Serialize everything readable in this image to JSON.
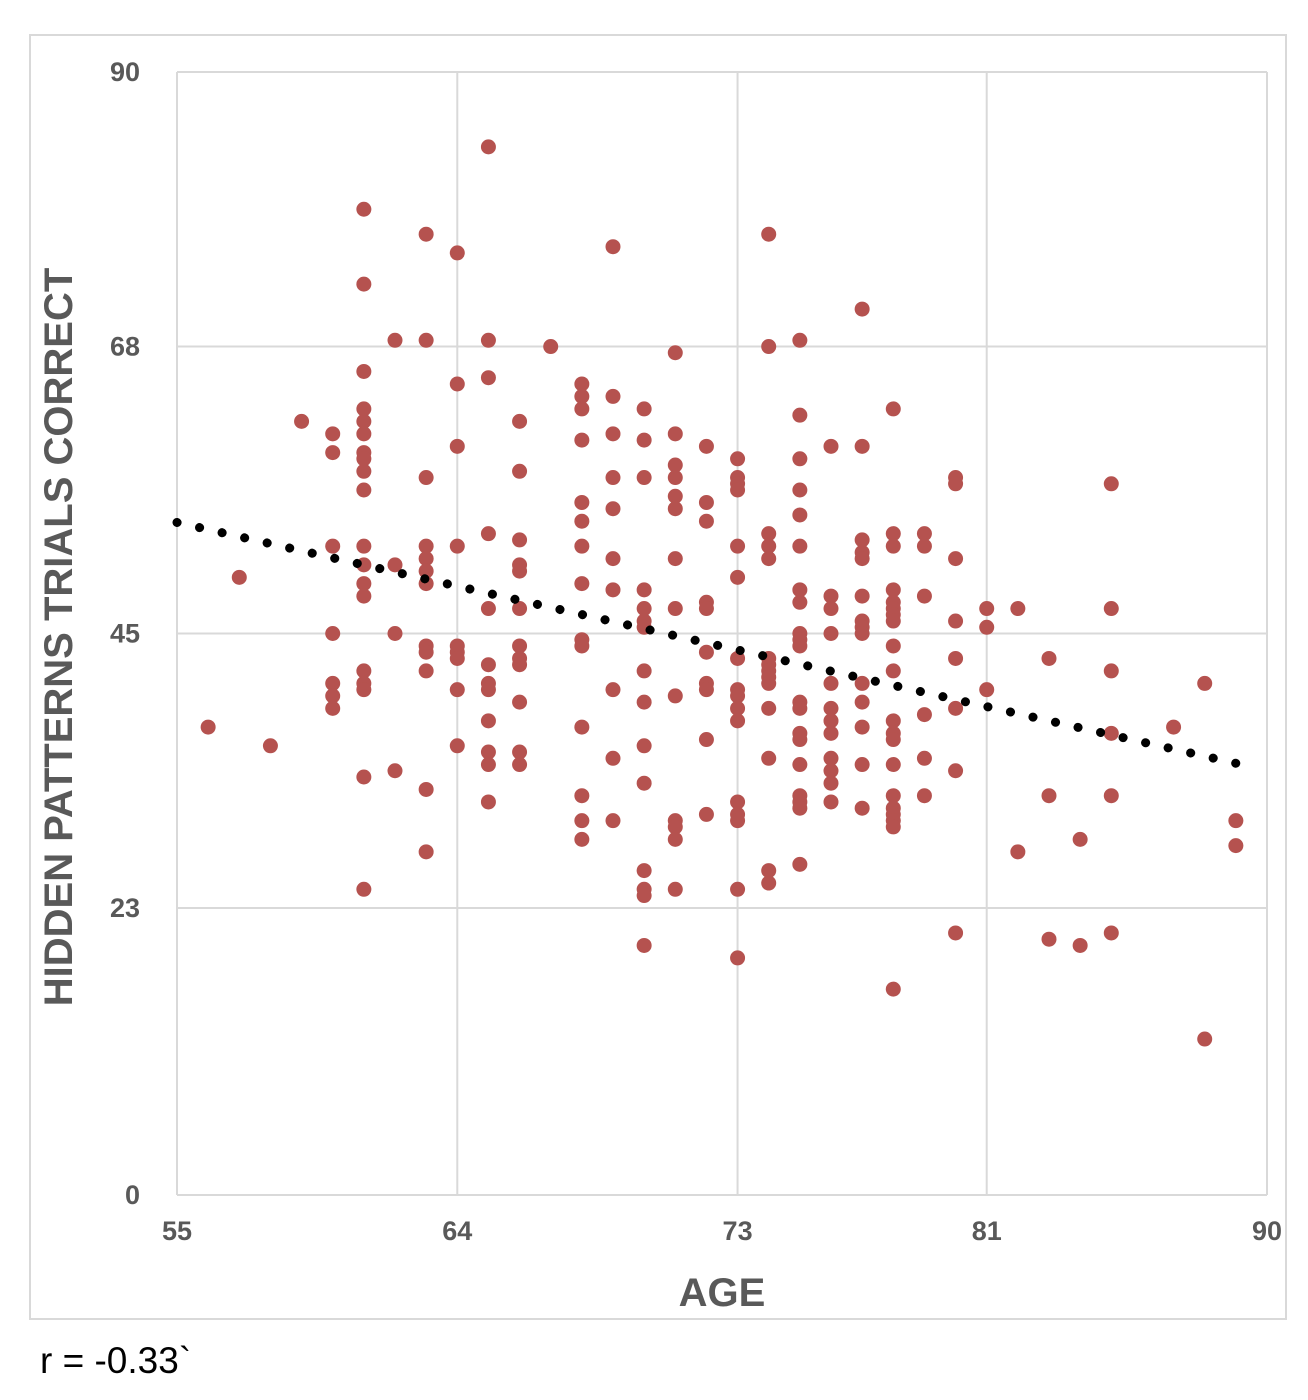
{
  "chart_data": {
    "type": "scatter",
    "title": "",
    "xlabel": "AGE",
    "ylabel": "HIDDEN PATTERNS TRIALS CORRECT",
    "xlim": [
      55,
      90
    ],
    "ylim": [
      0,
      90
    ],
    "xticks": [
      "55",
      "64",
      "73",
      "81",
      "90"
    ],
    "yticks": [
      "0",
      "23",
      "45",
      "68",
      "90"
    ],
    "grid": true,
    "legend": "none",
    "point_color": "#b5524f",
    "trendline": {
      "type": "linear",
      "style": "dotted",
      "color": "#000000",
      "x": [
        55,
        89
      ],
      "y": [
        53.9,
        34.6
      ]
    },
    "points": [
      [
        56,
        37.5
      ],
      [
        57,
        49.5
      ],
      [
        58,
        36
      ],
      [
        59,
        62
      ],
      [
        60,
        45
      ],
      [
        60,
        41
      ],
      [
        60,
        40
      ],
      [
        60,
        39
      ],
      [
        60,
        61
      ],
      [
        60,
        59.5
      ],
      [
        60,
        52
      ],
      [
        61,
        79
      ],
      [
        61,
        73
      ],
      [
        61,
        66
      ],
      [
        61,
        63
      ],
      [
        61,
        62
      ],
      [
        61,
        61
      ],
      [
        61,
        59.5
      ],
      [
        61,
        59
      ],
      [
        61,
        58
      ],
      [
        61,
        56.5
      ],
      [
        61,
        52
      ],
      [
        61,
        50.5
      ],
      [
        61,
        49
      ],
      [
        61,
        48
      ],
      [
        61,
        42
      ],
      [
        61,
        41
      ],
      [
        61,
        40.5
      ],
      [
        61,
        33.5
      ],
      [
        61,
        24.5
      ],
      [
        62,
        68.5
      ],
      [
        62,
        50.5
      ],
      [
        62,
        45
      ],
      [
        62,
        34
      ],
      [
        63,
        77
      ],
      [
        63,
        68.5
      ],
      [
        63,
        57.5
      ],
      [
        63,
        52
      ],
      [
        63,
        51
      ],
      [
        63,
        50
      ],
      [
        63,
        49
      ],
      [
        63,
        44
      ],
      [
        63,
        43.5
      ],
      [
        63,
        42
      ],
      [
        63,
        32.5
      ],
      [
        63,
        27.5
      ],
      [
        64,
        75.5
      ],
      [
        64,
        65
      ],
      [
        64,
        60
      ],
      [
        64,
        52
      ],
      [
        64,
        44
      ],
      [
        64,
        43.5
      ],
      [
        64,
        43
      ],
      [
        64,
        40.5
      ],
      [
        64,
        36
      ],
      [
        65,
        84
      ],
      [
        65,
        68.5
      ],
      [
        65,
        65.5
      ],
      [
        65,
        53
      ],
      [
        65,
        47
      ],
      [
        65,
        42.5
      ],
      [
        65,
        41
      ],
      [
        65,
        40.5
      ],
      [
        65,
        38
      ],
      [
        65,
        35.5
      ],
      [
        65,
        34.5
      ],
      [
        65,
        31.5
      ],
      [
        66,
        62
      ],
      [
        66,
        58
      ],
      [
        66,
        52.5
      ],
      [
        66,
        50.5
      ],
      [
        66,
        50
      ],
      [
        66,
        47
      ],
      [
        66,
        44
      ],
      [
        66,
        43
      ],
      [
        66,
        42.5
      ],
      [
        66,
        39.5
      ],
      [
        66,
        35.5
      ],
      [
        66,
        34.5
      ],
      [
        67,
        68
      ],
      [
        68,
        65
      ],
      [
        68,
        64
      ],
      [
        68,
        63
      ],
      [
        68,
        60.5
      ],
      [
        68,
        55.5
      ],
      [
        68,
        54
      ],
      [
        68,
        52
      ],
      [
        68,
        49
      ],
      [
        68,
        44.5
      ],
      [
        68,
        44
      ],
      [
        68,
        37.5
      ],
      [
        68,
        32
      ],
      [
        68,
        30
      ],
      [
        68,
        28.5
      ],
      [
        69,
        76
      ],
      [
        69,
        64
      ],
      [
        69,
        61
      ],
      [
        69,
        57.5
      ],
      [
        69,
        55
      ],
      [
        69,
        51
      ],
      [
        69,
        48.5
      ],
      [
        69,
        40.5
      ],
      [
        69,
        35
      ],
      [
        69,
        30
      ],
      [
        70,
        63
      ],
      [
        70,
        60.5
      ],
      [
        70,
        57.5
      ],
      [
        70,
        48.5
      ],
      [
        70,
        47
      ],
      [
        70,
        46
      ],
      [
        70,
        45.5
      ],
      [
        70,
        42
      ],
      [
        70,
        39.5
      ],
      [
        70,
        36
      ],
      [
        70,
        33
      ],
      [
        70,
        26
      ],
      [
        70,
        24.5
      ],
      [
        70,
        24
      ],
      [
        70,
        20
      ],
      [
        71,
        67.5
      ],
      [
        71,
        61
      ],
      [
        71,
        58.5
      ],
      [
        71,
        57.5
      ],
      [
        71,
        56
      ],
      [
        71,
        55
      ],
      [
        71,
        51
      ],
      [
        71,
        47
      ],
      [
        71,
        40
      ],
      [
        71,
        30
      ],
      [
        71,
        29.5
      ],
      [
        71,
        28.5
      ],
      [
        71,
        24.5
      ],
      [
        72,
        60
      ],
      [
        72,
        55.5
      ],
      [
        72,
        54
      ],
      [
        72,
        47.5
      ],
      [
        72,
        47
      ],
      [
        72,
        43.5
      ],
      [
        72,
        41
      ],
      [
        72,
        40.5
      ],
      [
        72,
        36.5
      ],
      [
        72,
        30.5
      ],
      [
        73,
        59
      ],
      [
        73,
        57.5
      ],
      [
        73,
        57
      ],
      [
        73,
        56.5
      ],
      [
        73,
        52
      ],
      [
        73,
        49.5
      ],
      [
        73,
        43
      ],
      [
        73,
        40.5
      ],
      [
        73,
        40
      ],
      [
        73,
        39
      ],
      [
        73,
        38
      ],
      [
        73,
        31.5
      ],
      [
        73,
        30.5
      ],
      [
        73,
        30
      ],
      [
        73,
        24.5
      ],
      [
        73,
        19
      ],
      [
        74,
        77
      ],
      [
        74,
        68
      ],
      [
        74,
        53
      ],
      [
        74,
        52
      ],
      [
        74,
        51
      ],
      [
        74,
        43
      ],
      [
        74,
        42.5
      ],
      [
        74,
        42
      ],
      [
        74,
        41.5
      ],
      [
        74,
        41
      ],
      [
        74,
        39
      ],
      [
        74,
        35
      ],
      [
        74,
        26
      ],
      [
        74,
        25
      ],
      [
        75,
        68.5
      ],
      [
        75,
        62.5
      ],
      [
        75,
        59
      ],
      [
        75,
        56.5
      ],
      [
        75,
        54.5
      ],
      [
        75,
        52
      ],
      [
        75,
        48.5
      ],
      [
        75,
        47.5
      ],
      [
        75,
        45
      ],
      [
        75,
        44.5
      ],
      [
        75,
        44
      ],
      [
        75,
        39.5
      ],
      [
        75,
        39
      ],
      [
        75,
        37
      ],
      [
        75,
        36.5
      ],
      [
        75,
        34.5
      ],
      [
        75,
        32
      ],
      [
        75,
        31.5
      ],
      [
        75,
        31
      ],
      [
        75,
        26.5
      ],
      [
        76,
        60
      ],
      [
        76,
        48
      ],
      [
        76,
        47
      ],
      [
        76,
        45
      ],
      [
        76,
        41
      ],
      [
        76,
        39
      ],
      [
        76,
        38
      ],
      [
        76,
        37
      ],
      [
        76,
        35
      ],
      [
        76,
        34
      ],
      [
        76,
        33
      ],
      [
        76,
        31.5
      ],
      [
        77,
        71
      ],
      [
        77,
        60
      ],
      [
        77,
        52.5
      ],
      [
        77,
        51.5
      ],
      [
        77,
        51
      ],
      [
        77,
        48
      ],
      [
        77,
        46
      ],
      [
        77,
        45.5
      ],
      [
        77,
        45
      ],
      [
        77,
        41
      ],
      [
        77,
        39.5
      ],
      [
        77,
        37.5
      ],
      [
        77,
        34.5
      ],
      [
        77,
        31
      ],
      [
        78,
        63
      ],
      [
        78,
        53
      ],
      [
        78,
        52
      ],
      [
        78,
        48.5
      ],
      [
        78,
        47.5
      ],
      [
        78,
        47
      ],
      [
        78,
        46.5
      ],
      [
        78,
        46
      ],
      [
        78,
        44
      ],
      [
        78,
        42
      ],
      [
        78,
        38
      ],
      [
        78,
        37
      ],
      [
        78,
        36.5
      ],
      [
        78,
        34.5
      ],
      [
        78,
        32
      ],
      [
        78,
        31
      ],
      [
        78,
        30.5
      ],
      [
        78,
        30
      ],
      [
        78,
        29.5
      ],
      [
        78,
        16.5
      ],
      [
        79,
        53
      ],
      [
        79,
        52
      ],
      [
        79,
        48
      ],
      [
        79,
        38.5
      ],
      [
        79,
        35
      ],
      [
        79,
        32
      ],
      [
        80,
        57.5
      ],
      [
        80,
        57
      ],
      [
        80,
        51
      ],
      [
        80,
        46
      ],
      [
        80,
        43
      ],
      [
        80,
        39
      ],
      [
        80,
        34
      ],
      [
        80,
        21
      ],
      [
        81,
        47
      ],
      [
        81,
        45.5
      ],
      [
        81,
        40.5
      ],
      [
        82,
        47
      ],
      [
        82,
        27.5
      ],
      [
        83,
        43
      ],
      [
        83,
        32
      ],
      [
        83,
        20.5
      ],
      [
        84,
        28.5
      ],
      [
        84,
        20
      ],
      [
        85,
        57
      ],
      [
        85,
        47
      ],
      [
        85,
        42
      ],
      [
        85,
        37
      ],
      [
        85,
        32
      ],
      [
        85,
        21
      ],
      [
        87,
        37.5
      ],
      [
        88,
        41
      ],
      [
        88,
        12.5
      ],
      [
        89,
        30
      ],
      [
        89,
        28
      ]
    ]
  },
  "note": "r = -0.33`"
}
